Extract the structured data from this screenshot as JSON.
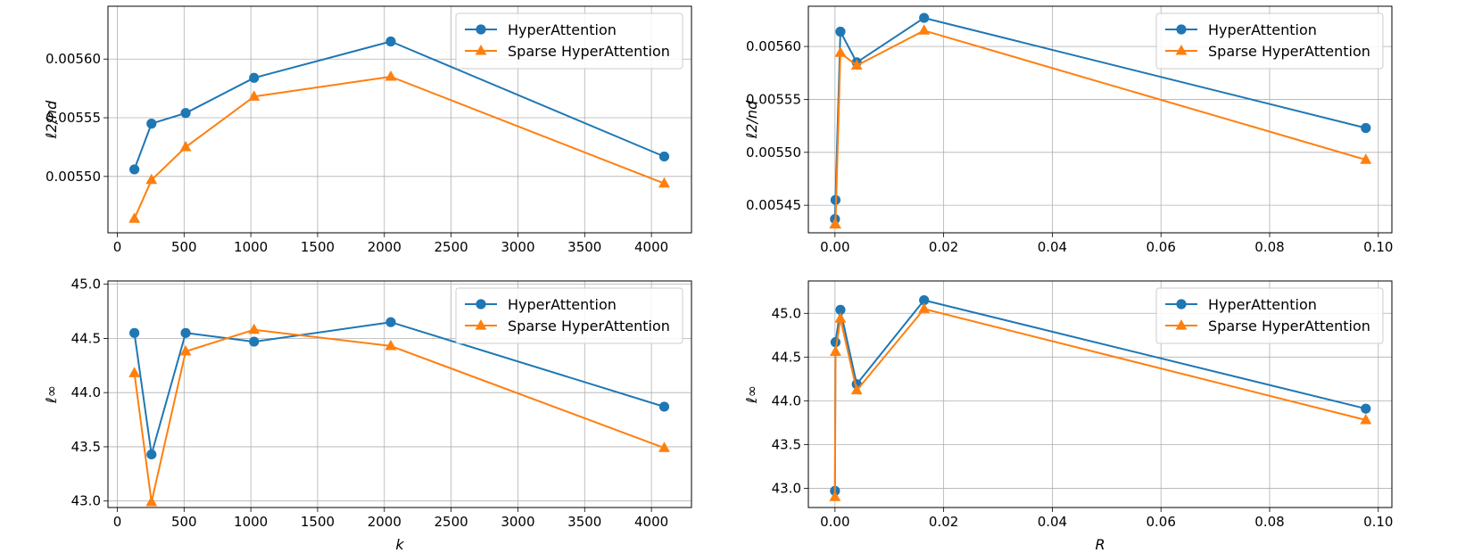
{
  "chart_data": [
    {
      "type": "line",
      "panel": "top-left",
      "xlabel": "",
      "ylabel": "ℓ2/nd",
      "xlim": [
        -70,
        4300
      ],
      "ylim": [
        0.005452,
        0.005645
      ],
      "xticks": [
        0,
        500,
        1000,
        1500,
        2000,
        2500,
        3000,
        3500,
        4000
      ],
      "xtick_labels": [
        "0",
        "500",
        "1000",
        "1500",
        "2000",
        "2500",
        "3000",
        "3500",
        "4000"
      ],
      "yticks": [
        0.0055,
        0.00555,
        0.0056
      ],
      "ytick_labels": [
        "0.00550",
        "0.00555",
        "0.00560"
      ],
      "grid": true,
      "legend": "top-right",
      "series": [
        {
          "name": "HyperAttention",
          "marker": "circle",
          "color": "#1f77b4",
          "x": [
            128,
            256,
            512,
            1024,
            2048,
            4096
          ],
          "y": [
            0.005506,
            0.005545,
            0.005554,
            0.005584,
            0.005615,
            0.005517
          ]
        },
        {
          "name": "Sparse HyperAttention",
          "marker": "triangle",
          "color": "#ff7f0e",
          "x": [
            128,
            256,
            512,
            1024,
            2048,
            4096
          ],
          "y": [
            0.005464,
            0.005497,
            0.005525,
            0.005568,
            0.005585,
            0.005494
          ]
        }
      ]
    },
    {
      "type": "line",
      "panel": "top-right",
      "xlabel": "",
      "ylabel": "ℓ2/nd",
      "xlim": [
        -0.0049,
        0.1025
      ],
      "ylim": [
        0.005424,
        0.005638
      ],
      "xticks": [
        0,
        0.02,
        0.04,
        0.06,
        0.08,
        0.1
      ],
      "xtick_labels": [
        "0.00",
        "0.02",
        "0.04",
        "0.06",
        "0.08",
        "0.10"
      ],
      "yticks": [
        0.00545,
        0.0055,
        0.00555,
        0.0056
      ],
      "ytick_labels": [
        "0.00545",
        "0.00550",
        "0.00555",
        "0.00560"
      ],
      "grid": true,
      "legend": "top-right",
      "series": [
        {
          "name": "HyperAttention",
          "marker": "circle",
          "color": "#1f77b4",
          "x": [
            0.0,
            0.0001,
            0.001,
            0.004,
            0.0164,
            0.0977
          ],
          "y": [
            0.005437,
            0.005455,
            0.005614,
            0.005585,
            0.005627,
            0.005523
          ]
        },
        {
          "name": "Sparse HyperAttention",
          "marker": "triangle",
          "color": "#ff7f0e",
          "x": [
            0.0,
            0.0001,
            0.001,
            0.004,
            0.0164,
            0.0977
          ],
          "y": [
            0.005432,
            0.005432,
            0.005594,
            0.005582,
            0.005615,
            0.005493
          ]
        }
      ]
    },
    {
      "type": "line",
      "panel": "bottom-left",
      "xlabel": "k",
      "ylabel": "ℓ∞",
      "xlim": [
        -70,
        4300
      ],
      "ylim": [
        42.94,
        45.03
      ],
      "xticks": [
        0,
        500,
        1000,
        1500,
        2000,
        2500,
        3000,
        3500,
        4000
      ],
      "xtick_labels": [
        "0",
        "500",
        "1000",
        "1500",
        "2000",
        "2500",
        "3000",
        "3500",
        "4000"
      ],
      "yticks": [
        43.0,
        43.5,
        44.0,
        44.5,
        45.0
      ],
      "ytick_labels": [
        "43.0",
        "43.5",
        "44.0",
        "44.5",
        "45.0"
      ],
      "grid": true,
      "legend": "top-right",
      "series": [
        {
          "name": "HyperAttention",
          "marker": "circle",
          "color": "#1f77b4",
          "x": [
            128,
            256,
            512,
            1024,
            2048,
            4096
          ],
          "y": [
            44.55,
            43.43,
            44.55,
            44.47,
            44.65,
            43.87
          ]
        },
        {
          "name": "Sparse HyperAttention",
          "marker": "triangle",
          "color": "#ff7f0e",
          "x": [
            128,
            256,
            512,
            1024,
            2048,
            4096
          ],
          "y": [
            44.18,
            42.99,
            44.38,
            44.58,
            44.43,
            43.49
          ]
        }
      ]
    },
    {
      "type": "line",
      "panel": "bottom-right",
      "xlabel": "R",
      "ylabel": "ℓ∞",
      "xlim": [
        -0.0049,
        0.1025
      ],
      "ylim": [
        42.78,
        45.37
      ],
      "xticks": [
        0,
        0.02,
        0.04,
        0.06,
        0.08,
        0.1
      ],
      "xtick_labels": [
        "0.00",
        "0.02",
        "0.04",
        "0.06",
        "0.08",
        "0.10"
      ],
      "yticks": [
        43.0,
        43.5,
        44.0,
        44.5,
        45.0
      ],
      "ytick_labels": [
        "43.0",
        "43.5",
        "44.0",
        "44.5",
        "45.0"
      ],
      "grid": true,
      "legend": "top-right",
      "series": [
        {
          "name": "HyperAttention",
          "marker": "circle",
          "color": "#1f77b4",
          "x": [
            0.0,
            0.0001,
            0.001,
            0.004,
            0.0164,
            0.0977
          ],
          "y": [
            42.97,
            44.67,
            45.04,
            44.19,
            45.15,
            43.91
          ]
        },
        {
          "name": "Sparse HyperAttention",
          "marker": "triangle",
          "color": "#ff7f0e",
          "x": [
            0.0,
            0.0001,
            0.001,
            0.004,
            0.0164,
            0.0977
          ],
          "y": [
            42.9,
            44.56,
            44.94,
            44.12,
            45.05,
            43.78
          ]
        }
      ]
    }
  ]
}
